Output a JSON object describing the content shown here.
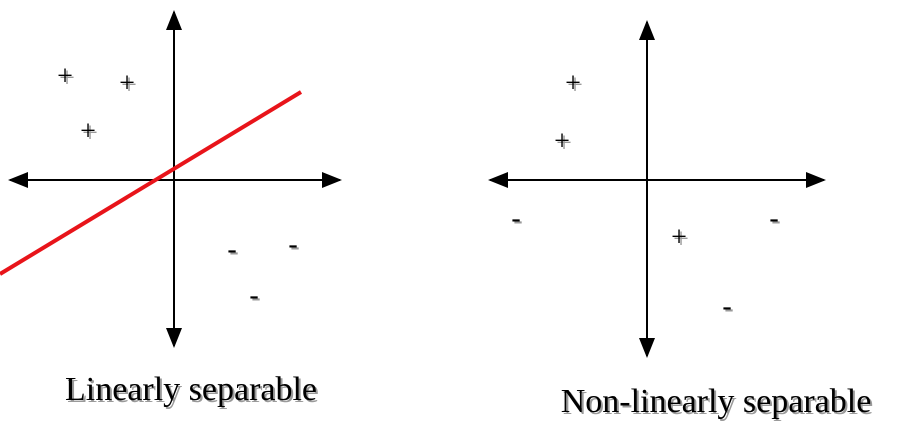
{
  "panels": [
    {
      "caption": "Linearly separable",
      "plus_symbol": "+",
      "minus_symbol": "-",
      "plus_count": 3,
      "minus_count": 3,
      "separator_color": "#e8141a"
    },
    {
      "caption": "Non-linearly separable",
      "plus_symbol": "+",
      "minus_symbol": "-",
      "plus_count": 3,
      "minus_count": 3
    }
  ],
  "colors": {
    "axis": "#000000",
    "separator": "#e8141a",
    "background": "#ffffff"
  }
}
